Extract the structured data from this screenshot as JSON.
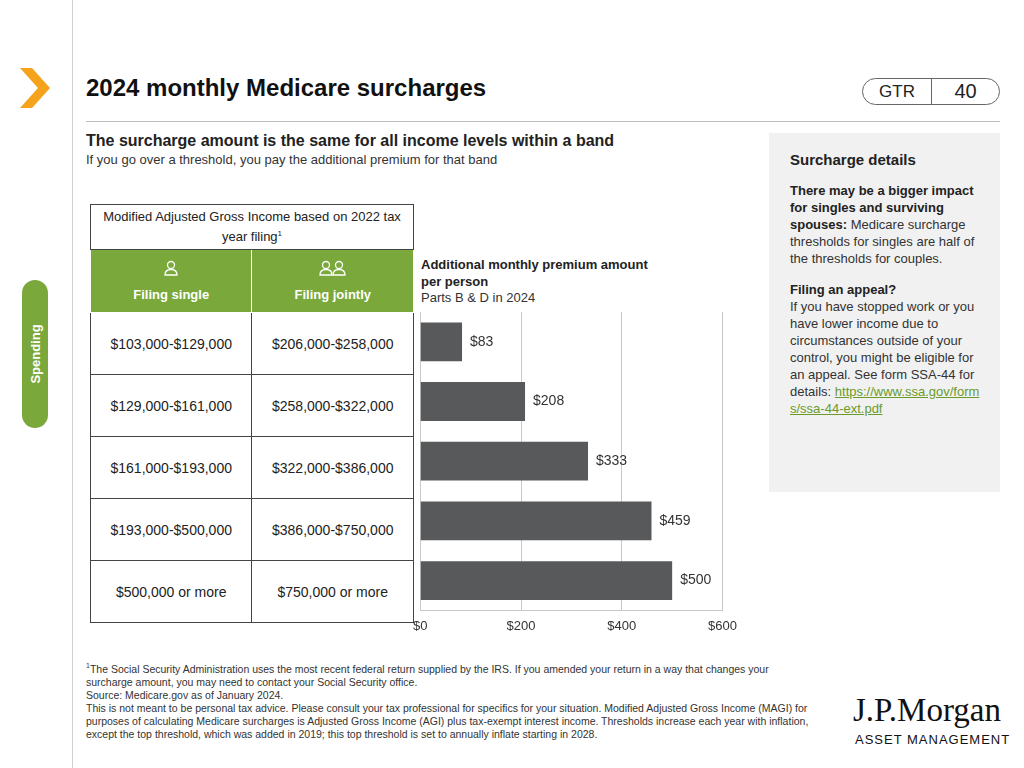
{
  "page": {
    "title": "2024 monthly Medicare surcharges",
    "badge": {
      "label": "GTR",
      "number": "40"
    },
    "section_tab": "Spending",
    "heading": "The surcharge amount is the same for all income levels within a band",
    "subheading": "If you go over a threshold, you pay the additional premium for that band",
    "logo": {
      "name": "J.P.Morgan",
      "tagline": "ASSET MANAGEMENT"
    }
  },
  "table": {
    "header": "Modified Adjusted Gross Income based on 2022 tax year filing",
    "header_mark": "1",
    "columns": [
      "Filing single",
      "Filing jointly"
    ],
    "rows": [
      [
        "$103,000-$129,000",
        "$206,000-$258,000"
      ],
      [
        "$129,000-$161,000",
        "$258,000-$322,000"
      ],
      [
        "$161,000-$193,000",
        "$322,000-$386,000"
      ],
      [
        "$193,000-$500,000",
        "$386,000-$750,000"
      ],
      [
        "$500,000 or more",
        "$750,000 or more"
      ]
    ]
  },
  "chart_data": {
    "type": "bar",
    "orientation": "horizontal",
    "title": "Additional monthly premium amount per person",
    "subtitle": "Parts B & D in 2024",
    "categories": [
      null,
      null,
      null,
      null,
      null
    ],
    "values": [
      83,
      208,
      333,
      459,
      500
    ],
    "value_labels": [
      "$83",
      "$208",
      "$333",
      "$459",
      "$500"
    ],
    "data_labels": true,
    "color": "#58595b",
    "xlim": [
      0,
      600
    ],
    "xticks": [
      {
        "value": 0,
        "label": "$0"
      },
      {
        "value": 200,
        "label": "$200"
      },
      {
        "value": 400,
        "label": "$400"
      },
      {
        "value": 600,
        "label": "$600"
      }
    ],
    "grid": true,
    "tick_labels": "x"
  },
  "sidebar": {
    "title": "Surcharge details",
    "paragraphs": [
      {
        "bold": "There may be a bigger impact for singles and surviving spouses:",
        "text": " Medicare surcharge thresholds for singles are half of the thresholds for couples."
      },
      {
        "bold": "Filing an appeal?",
        "text": "If you have stopped work or you have lower income due to circumstances outside of your control, you might be eligible for an appeal. See form SSA-44 for details:",
        "link": "https://www.ssa.gov/forms/ssa-44-ext.pdf"
      }
    ]
  },
  "footnotes": {
    "mark": "1",
    "lines": [
      "The Social Security Administration uses the most recent federal return supplied by the IRS. If you amended your return in a way that changes your surcharge amount, you may need to contact your Social Security office.",
      "Source: Medicare.gov as of January 2024.",
      "This is not meant to be personal tax advice. Please consult your tax professional for specifics for your situation. Modified Adjusted Gross Income (MAGI) for purposes of calculating Medicare surcharges is Adjusted Gross Income (AGI) plus tax-exempt interest income. Thresholds increase each year with inflation, except the top threshold, which was added in 2019; this top threshold is set to annually inflate starting in 2028."
    ]
  }
}
